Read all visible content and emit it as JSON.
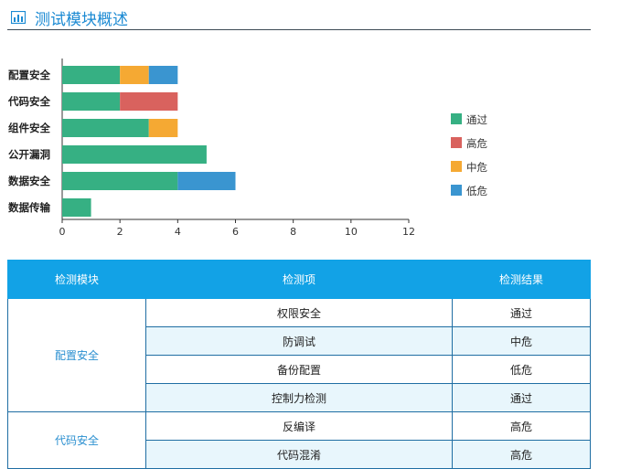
{
  "header": {
    "title": "测试模块概述",
    "icon": "bar-chart-icon"
  },
  "chart_data": {
    "type": "bar",
    "orientation": "horizontal",
    "stacked": true,
    "categories": [
      "配置安全",
      "代码安全",
      "组件安全",
      "公开漏洞",
      "数据安全",
      "数据传输"
    ],
    "series": [
      {
        "name": "通过",
        "color": "#36b083",
        "values": [
          2,
          2,
          3,
          5,
          4,
          1
        ]
      },
      {
        "name": "高危",
        "color": "#d9625e",
        "values": [
          0,
          2,
          0,
          0,
          0,
          0
        ]
      },
      {
        "name": "中危",
        "color": "#f5a933",
        "values": [
          1,
          0,
          1,
          0,
          0,
          0
        ]
      },
      {
        "name": "低危",
        "color": "#3a95d0",
        "values": [
          1,
          0,
          0,
          0,
          2,
          0
        ]
      }
    ],
    "xlim": [
      0,
      12
    ],
    "xticks": [
      "0",
      "2",
      "4",
      "6",
      "8",
      "10",
      "12"
    ],
    "legend_position": "right",
    "grid": false
  },
  "table": {
    "headers": [
      "检测模块",
      "检测项",
      "检测结果"
    ],
    "groups": [
      {
        "module": "配置安全",
        "rows": [
          {
            "item": "权限安全",
            "result": "通过"
          },
          {
            "item": "防调试",
            "result": "中危"
          },
          {
            "item": "备份配置",
            "result": "低危"
          },
          {
            "item": "控制力检测",
            "result": "通过"
          }
        ]
      },
      {
        "module": "代码安全",
        "rows": [
          {
            "item": "反编译",
            "result": "高危"
          },
          {
            "item": "代码混淆",
            "result": "高危"
          }
        ]
      }
    ]
  }
}
